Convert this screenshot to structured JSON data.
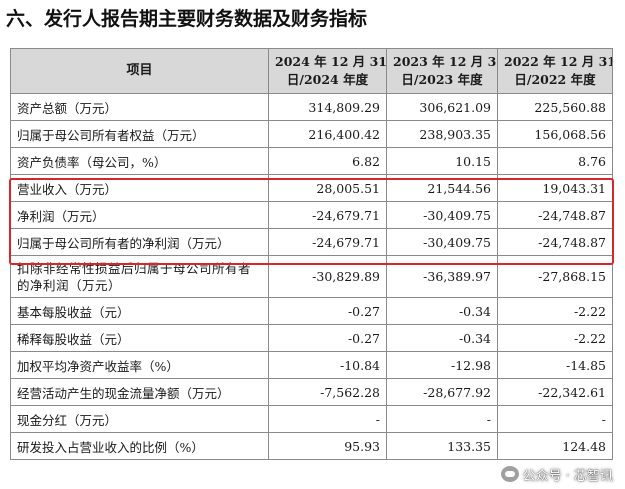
{
  "heading": "六、发行人报告期主要财务数据及财务指标",
  "table": {
    "header": {
      "item": "项目",
      "col1_line1": "2024 年 12 月 31",
      "col1_line2": "日/2024 年度",
      "col2_line1": "2023 年 12 月 31",
      "col2_line2": "日/2023 年度",
      "col3_line1": "2022 年 12 月 31",
      "col3_line2": "日/2022 年度"
    },
    "rows": [
      {
        "label": "资产总额（万元）",
        "v2024": "314,809.29",
        "v2023": "306,621.09",
        "v2022": "225,560.88"
      },
      {
        "label": "归属于母公司所有者权益（万元）",
        "v2024": "216,400.42",
        "v2023": "238,903.35",
        "v2022": "156,068.56"
      },
      {
        "label": "资产负债率（母公司，%）",
        "v2024": "6.82",
        "v2023": "10.15",
        "v2022": "8.76"
      },
      {
        "label": "营业收入（万元）",
        "v2024": "28,005.51",
        "v2023": "21,544.56",
        "v2022": "19,043.31"
      },
      {
        "label": "净利润（万元）",
        "v2024": "-24,679.71",
        "v2023": "-30,409.75",
        "v2022": "-24,748.87"
      },
      {
        "label": "归属于母公司所有者的净利润（万元）",
        "v2024": "-24,679.71",
        "v2023": "-30,409.75",
        "v2022": "-24,748.87"
      },
      {
        "label": "扣除非经常性损益后归属于母公司所有者的净利润（万元）",
        "v2024": "-30,829.89",
        "v2023": "-36,389.97",
        "v2022": "-27,868.15"
      },
      {
        "label": "基本每股收益（元）",
        "v2024": "-0.27",
        "v2023": "-0.34",
        "v2022": "-2.22"
      },
      {
        "label": "稀释每股收益（元）",
        "v2024": "-0.27",
        "v2023": "-0.34",
        "v2022": "-2.22"
      },
      {
        "label": "加权平均净资产收益率（%）",
        "v2024": "-10.84",
        "v2023": "-12.98",
        "v2022": "-14.85"
      },
      {
        "label": "经营活动产生的现金流量净额（万元）",
        "v2024": "-7,562.28",
        "v2023": "-28,677.92",
        "v2022": "-22,342.61"
      },
      {
        "label": "现金分红（万元）",
        "v2024": "-",
        "v2023": "-",
        "v2022": "-"
      },
      {
        "label": "研发投入占营业收入的比例（%）",
        "v2024": "95.93",
        "v2023": "133.35",
        "v2022": "124.48"
      }
    ]
  },
  "highlight_color": "#d8262f",
  "watermark": {
    "icon": "wechat-icon",
    "text": "公众号 · 芯智讯"
  }
}
